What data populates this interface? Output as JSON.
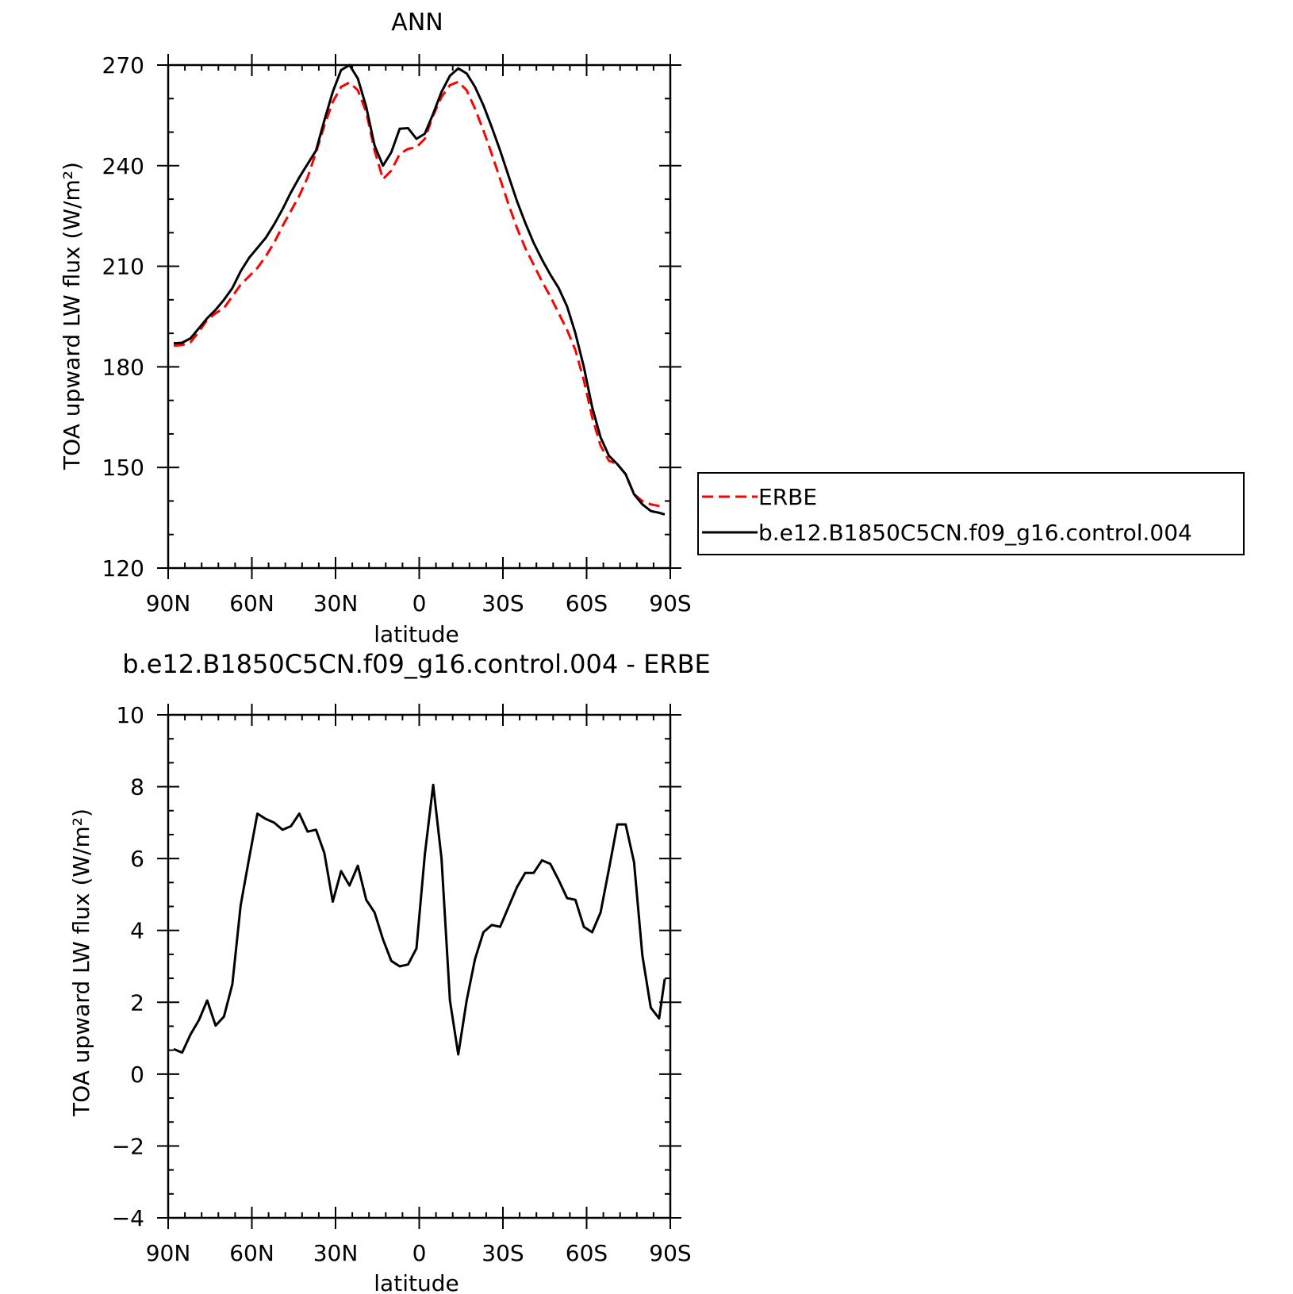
{
  "chart_data": [
    {
      "type": "line",
      "title": "ANN",
      "xlabel": "latitude",
      "ylabel": "TOA upward LW flux (W/m²)",
      "xlim": [
        90,
        -90
      ],
      "ylim": [
        120,
        270
      ],
      "xticks": [
        90,
        60,
        30,
        0,
        -30,
        -60,
        -90
      ],
      "xticklabels": [
        "90N",
        "60N",
        "30N",
        "0",
        "30S",
        "60S",
        "90S"
      ],
      "yticks": [
        120,
        150,
        180,
        210,
        240,
        270
      ],
      "yticklabels": [
        "120",
        "150",
        "180",
        "210",
        "240",
        "270"
      ],
      "legend_position": "right",
      "x": [
        88,
        85,
        82,
        79,
        76,
        73,
        70,
        67,
        64,
        61,
        58,
        55,
        52,
        49,
        46,
        43,
        40,
        37,
        34,
        31,
        28,
        25,
        22,
        19,
        16,
        13,
        10,
        7,
        4,
        1,
        -2,
        -5,
        -8,
        -11,
        -14,
        -17,
        -20,
        -23,
        -26,
        -29,
        -32,
        -35,
        -38,
        -41,
        -44,
        -47,
        -50,
        -53,
        -56,
        -59,
        -62,
        -65,
        -68,
        -71,
        -74,
        -77,
        -80,
        -83,
        -86,
        -88
      ],
      "series": [
        {
          "name": "ERBE",
          "color": "#ff0000",
          "dash": "dashed",
          "values": [
            186.3,
            186.5,
            187.3,
            190.5,
            194.0,
            196.0,
            197.5,
            201.0,
            204.5,
            207.0,
            209.5,
            213.0,
            217.0,
            222.0,
            226.5,
            231.0,
            236.5,
            244.0,
            252.0,
            259.0,
            263.5,
            264.8,
            262.5,
            256.0,
            244.5,
            236.0,
            238.5,
            243.5,
            245.0,
            245.5,
            248.0,
            255.0,
            260.5,
            264.0,
            265.0,
            262.5,
            257.0,
            250.5,
            243.5,
            236.0,
            228.5,
            221.5,
            215.5,
            210.5,
            205.5,
            201.0,
            196.0,
            191.0,
            185.0,
            176.0,
            165.0,
            156.5,
            152.0,
            151.0,
            148.0,
            142.0,
            140.0,
            139.0,
            138.5,
            138.0
          ]
        },
        {
          "name": "b.e12.B1850C5CN.f09_g16.control.004",
          "color": "#000000",
          "dash": "solid",
          "values": [
            187.0,
            187.2,
            188.5,
            191.5,
            194.5,
            197.0,
            200.0,
            203.5,
            208.5,
            212.5,
            215.5,
            218.5,
            222.5,
            227.0,
            232.0,
            236.5,
            240.5,
            244.5,
            253.5,
            262.0,
            268.5,
            270.0,
            266.0,
            257.5,
            246.0,
            240.0,
            244.0,
            251.0,
            251.2,
            248.0,
            249.5,
            255.5,
            262.0,
            266.8,
            269.0,
            267.5,
            263.5,
            258.0,
            251.5,
            244.5,
            237.0,
            229.5,
            223.0,
            217.0,
            212.0,
            207.5,
            203.5,
            198.0,
            190.0,
            180.0,
            168.0,
            159.0,
            153.5,
            151.0,
            148.0,
            142.0,
            139.0,
            137.0,
            136.5,
            136.0
          ]
        }
      ]
    },
    {
      "type": "line",
      "title": "b.e12.B1850C5CN.f09_g16.control.004 - ERBE",
      "xlabel": "latitude",
      "ylabel": "TOA upward LW flux (W/m²)",
      "xlim": [
        90,
        -90
      ],
      "ylim": [
        -4,
        10
      ],
      "xticks": [
        90,
        60,
        30,
        0,
        -30,
        -60,
        -90
      ],
      "xticklabels": [
        "90N",
        "60N",
        "30N",
        "0",
        "30S",
        "60S",
        "90S"
      ],
      "yticks": [
        -4,
        -2,
        0,
        2,
        4,
        6,
        8,
        10
      ],
      "yticklabels": [
        "−4",
        "−2",
        "0",
        "2",
        "4",
        "6",
        "8",
        "10"
      ],
      "x": [
        88,
        85,
        82,
        79,
        76,
        73,
        70,
        67,
        64,
        61,
        58,
        55,
        52,
        49,
        46,
        43,
        40,
        37,
        34,
        31,
        28,
        25,
        22,
        19,
        16,
        13,
        10,
        7,
        4,
        1,
        -2,
        -5,
        -8,
        -11,
        -14,
        -17,
        -20,
        -23,
        -26,
        -29,
        -32,
        -35,
        -38,
        -41,
        -44,
        -47,
        -50,
        -53,
        -56,
        -59,
        -62,
        -65,
        -68,
        -71,
        -74,
        -77,
        -80,
        -83,
        -86,
        -88
      ],
      "series": [
        {
          "color": "#000000",
          "dash": "solid",
          "values": [
            0.7,
            0.6,
            1.1,
            1.5,
            2.05,
            1.35,
            1.6,
            2.5,
            4.7,
            6.0,
            7.25,
            7.1,
            7.0,
            6.8,
            6.9,
            7.25,
            6.75,
            6.8,
            6.15,
            4.8,
            5.65,
            5.25,
            5.8,
            4.85,
            4.5,
            3.75,
            3.15,
            3.0,
            3.05,
            3.5,
            6.1,
            8.05,
            6.0,
            2.05,
            0.55,
            2.05,
            3.2,
            3.95,
            4.15,
            4.1,
            4.65,
            5.2,
            5.6,
            5.6,
            5.95,
            5.85,
            5.4,
            4.9,
            4.85,
            4.1,
            3.95,
            4.5,
            5.7,
            6.95,
            6.95,
            5.9,
            3.3,
            1.85,
            1.55,
            2.65
          ]
        }
      ]
    }
  ]
}
